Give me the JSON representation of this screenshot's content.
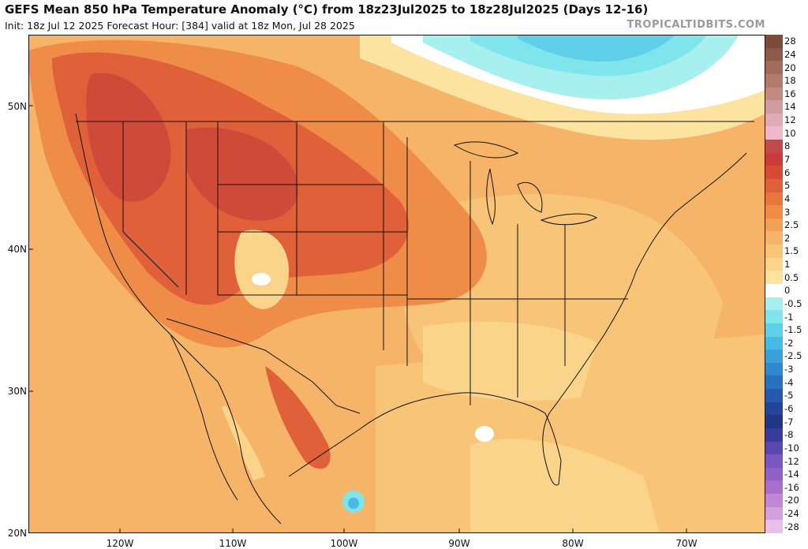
{
  "header": {
    "title": "GEFS Mean 850 hPa Temperature Anomaly (°C) from 18z23Jul2025 to 18z28Jul2025 (Days 12-16)",
    "subtitle": "Init: 18z Jul 12 2025   Forecast Hour: [384]   valid at 18z Mon, Jul 28 2025",
    "brand": "TROPICALTIDBITS.COM"
  },
  "axes": {
    "lat_labels": [
      "50N",
      "40N",
      "30N",
      "20N"
    ],
    "lon_labels": [
      "120W",
      "110W",
      "100W",
      "90W",
      "80W",
      "70W"
    ]
  },
  "colorbar": {
    "labels": [
      "28",
      "24",
      "20",
      "18",
      "16",
      "14",
      "12",
      "10",
      "8",
      "7",
      "6",
      "5",
      "4",
      "3",
      "2.5",
      "2",
      "1.5",
      "1",
      "0.5",
      "0",
      "-0.5",
      "-1",
      "-1.5",
      "-2",
      "-2.5",
      "-3",
      "-4",
      "-5",
      "-6",
      "-7",
      "-8",
      "-10",
      "-12",
      "-14",
      "-16",
      "-20",
      "-24",
      "-28"
    ],
    "colors": [
      "#7a4a3a",
      "#8c5a48",
      "#a06b5a",
      "#b07b6c",
      "#c08b80",
      "#d29ba0",
      "#e2aab8",
      "#eeb8c8",
      "#c24a4a",
      "#c83c3c",
      "#d64a36",
      "#e0603a",
      "#e8763e",
      "#ee8c48",
      "#f2a058",
      "#f6b468",
      "#f8c478",
      "#fad48a",
      "#fce4a0",
      "#ffffff",
      "#a8f0f0",
      "#80e4ec",
      "#60d0e8",
      "#48b8e4",
      "#3aa0dc",
      "#2e88d0",
      "#2a70c0",
      "#2658ac",
      "#22449a",
      "#223688",
      "#3a3a9c",
      "#5a48b0",
      "#7856c0",
      "#9060c8",
      "#a870cc",
      "#c088d4",
      "#d4a0dc",
      "#e8c0e8"
    ]
  },
  "map": {
    "colors": {
      "ocean_warm": "#f6b468",
      "land_base": "#f8c478",
      "warm1": "#ee8c48",
      "warm2": "#e0603a",
      "hot": "#d04a3a",
      "neutral": "#fce4a0",
      "cool1": "#a8f0f0",
      "cool2": "#60d0e8",
      "white": "#ffffff"
    }
  }
}
